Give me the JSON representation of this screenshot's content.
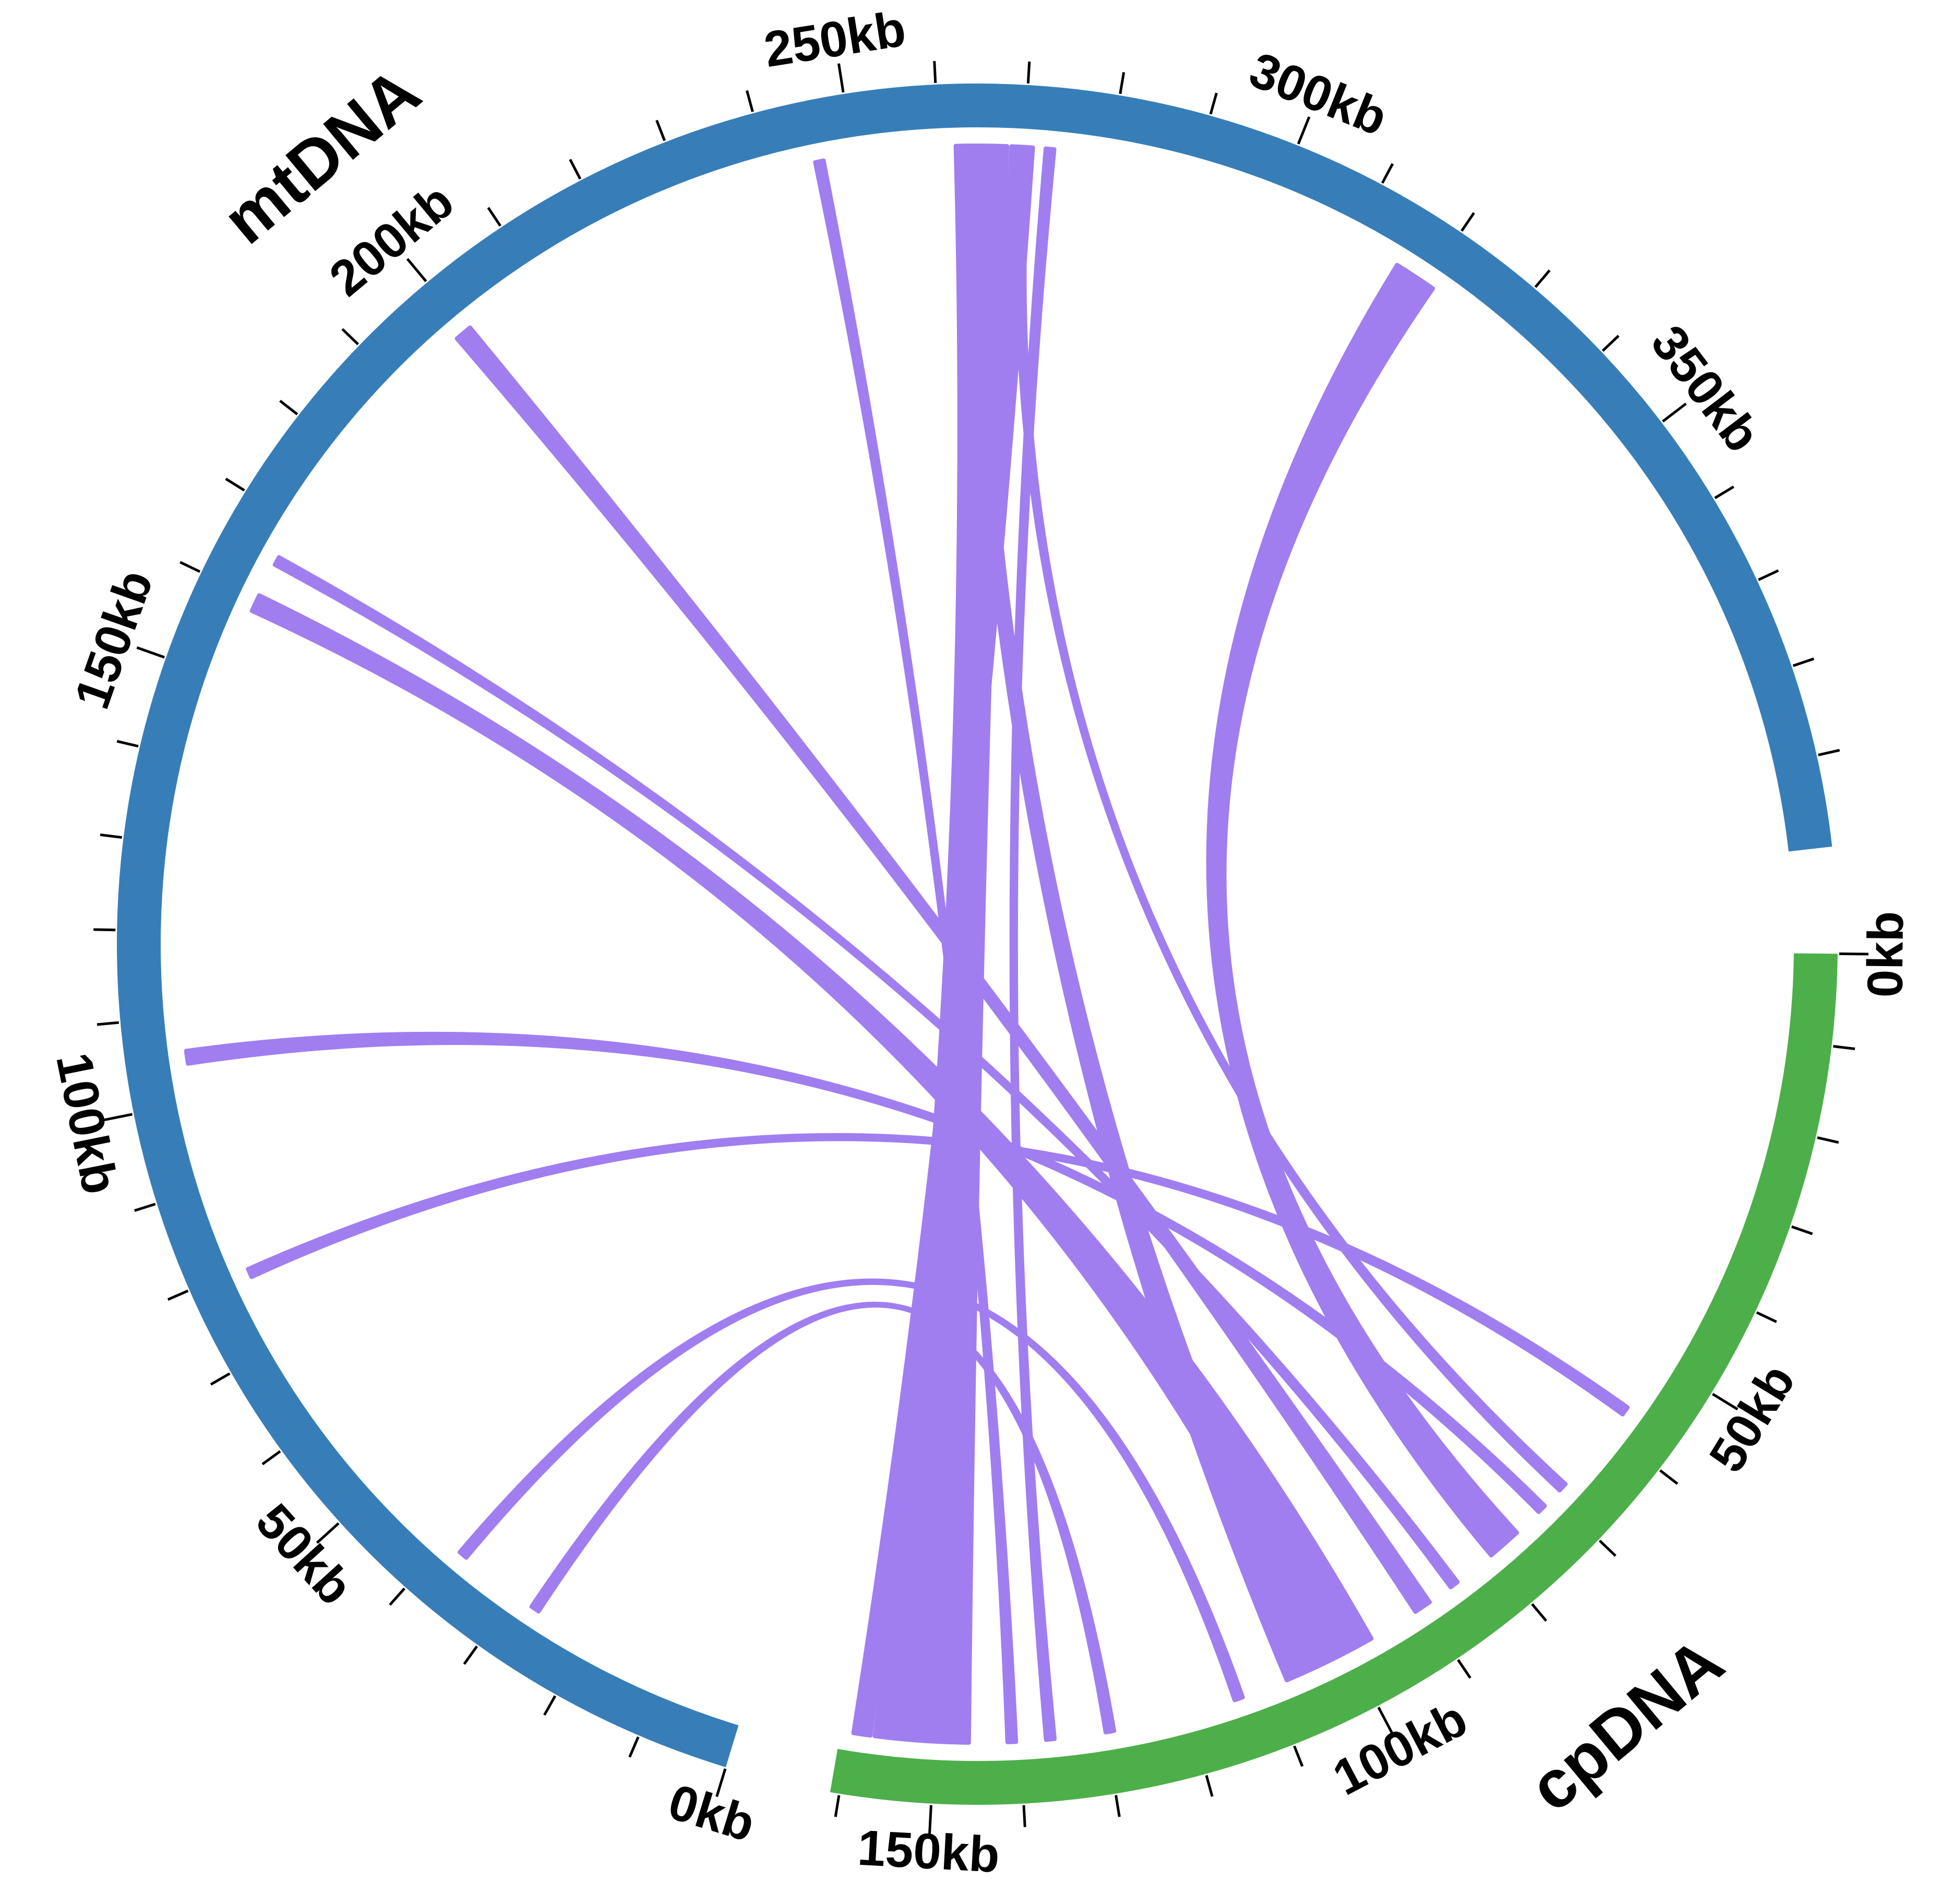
{
  "chart_data": {
    "type": "circos",
    "sectors": [
      {
        "name": "mtDNA",
        "color": "#377eb8",
        "range": [
          0,
          400
        ],
        "ticks": [
          {
            "value": 0,
            "label": "0kb"
          },
          {
            "value": 50,
            "label": "50kb"
          },
          {
            "value": 100,
            "label": "100kb"
          },
          {
            "value": 150,
            "label": "150kb"
          },
          {
            "value": 200,
            "label": "200kb"
          },
          {
            "value": 250,
            "label": "250kb"
          },
          {
            "value": 300,
            "label": "300kb"
          },
          {
            "value": 350,
            "label": "350kb"
          }
        ],
        "minor_ticks": [
          10,
          20,
          30,
          40,
          60,
          70,
          80,
          90,
          110,
          120,
          130,
          140,
          160,
          170,
          180,
          190,
          210,
          220,
          230,
          240,
          260,
          270,
          280,
          290,
          310,
          320,
          330,
          340,
          360,
          370,
          380,
          390
        ]
      },
      {
        "name": "cpDNA",
        "color": "#4daf4a",
        "range": [
          0,
          161
        ],
        "ticks": [
          {
            "value": 0,
            "label": "0kb"
          },
          {
            "value": 50,
            "label": "50kb"
          },
          {
            "value": 100,
            "label": "100kb"
          },
          {
            "value": 150,
            "label": "150kb"
          }
        ],
        "minor_ticks": [
          10,
          20,
          30,
          40,
          60,
          70,
          80,
          90,
          110,
          120,
          130,
          140,
          160
        ]
      }
    ],
    "link_color": "#a07ef0",
    "links": [
      {
        "source": [
          262,
          268
        ],
        "target": [
          146,
          157
        ]
      },
      {
        "source": [
          268.5,
          271
        ],
        "target": [
          157.5,
          159.5
        ]
      },
      {
        "source": [
          272.5,
          273.5
        ],
        "target": [
          136,
          137
        ]
      },
      {
        "source": [
          245.5,
          246.5
        ],
        "target": [
          140.5,
          141.5
        ]
      },
      {
        "source": [
          316,
          321
        ],
        "target": [
          76,
          80
        ]
      },
      {
        "source": [
          198.5,
          200.5
        ],
        "target": [
          89,
          91
        ]
      },
      {
        "source": [
          158.5,
          160.5
        ],
        "target": [
          97,
          104
        ]
      },
      {
        "source": [
          164.5,
          165.5
        ],
        "target": [
          85,
          86
        ]
      },
      {
        "source": [
          104.5,
          106
        ],
        "target": [
          71.5,
          72.5
        ]
      },
      {
        "source": [
          78.5,
          79.5
        ],
        "target": [
          56.5,
          57.5
        ]
      },
      {
        "source": [
          37,
          38
        ],
        "target": [
          113.5,
          114.5
        ]
      },
      {
        "source": [
          26.5,
          27.5
        ],
        "target": [
          129,
          130
        ]
      },
      {
        "source": [
          269.5,
          270.5
        ],
        "target": [
          68,
          69
        ]
      },
      {
        "source": [
          263,
          265
        ],
        "target": [
          104,
          108
        ]
      }
    ]
  }
}
